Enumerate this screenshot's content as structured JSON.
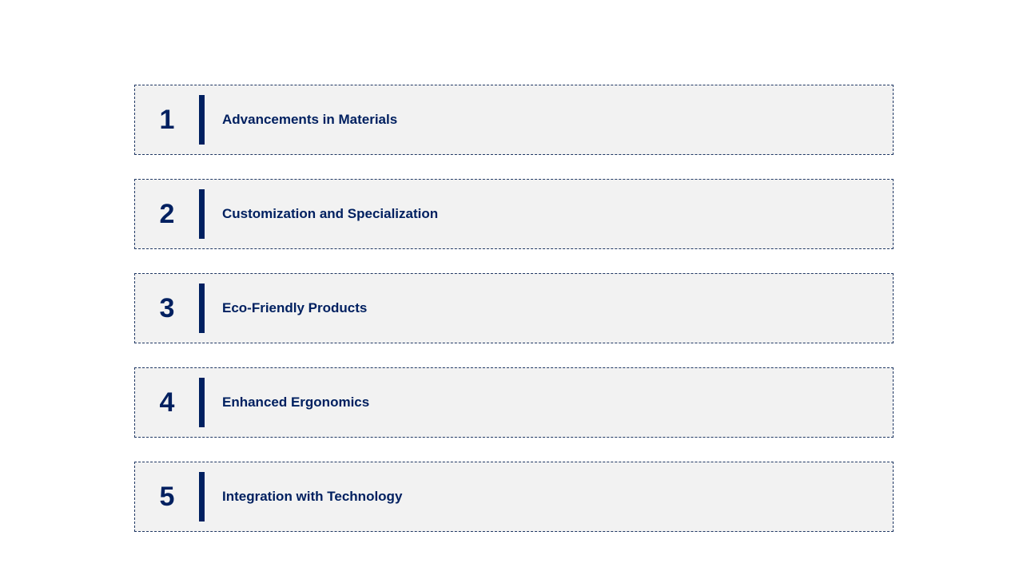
{
  "layout": {
    "item_height": 88,
    "item_gap": 30,
    "number_fontsize": 34,
    "label_fontsize": 17,
    "divider_width": 7,
    "divider_height": 62
  },
  "colors": {
    "background": "#ffffff",
    "item_bg": "#f2f2f2",
    "border": "#203864",
    "divider": "#002060",
    "number_text": "#002060",
    "label_text": "#002060"
  },
  "items": [
    {
      "number": "1",
      "label": "Advancements in Materials"
    },
    {
      "number": "2",
      "label": "Customization and Specialization"
    },
    {
      "number": "3",
      "label": "Eco-Friendly Products"
    },
    {
      "number": "4",
      "label": "Enhanced Ergonomics"
    },
    {
      "number": "5",
      "label": "Integration with Technology"
    }
  ]
}
